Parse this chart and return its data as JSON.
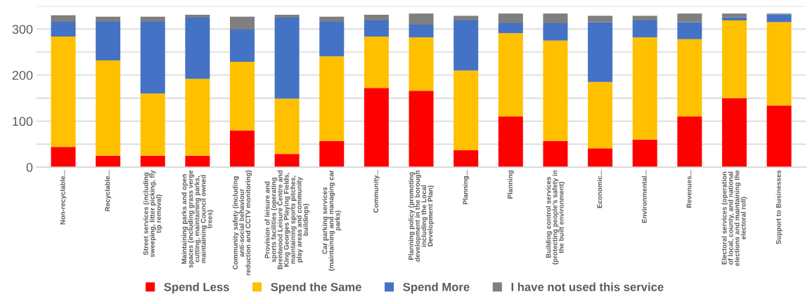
{
  "chart_data": {
    "type": "bar",
    "stacked": true,
    "categories": [
      "Non-recyclable...",
      "Recyclable...",
      "Street services (including sweeping, litter picking, fly tip removal)",
      "Maintaining parks and open spaces (including grass verge cutting, maintaining parks, maintaining Council owned trees)",
      "Community safety (including anti-social behaviour reduction and CCTV monitoring)",
      "Provision of leisure and sports facilities (operating Brentwood Leisure Centre and King Georges Playing Fields, maintaining sports pitches, play areas and community buildings)",
      "Car parking services (maintaining and managing car parks)",
      "Community...",
      "Planning policy (promoting development in the borough including the Local Development Plan)",
      "Planning...",
      "Planning",
      "Building control services (protecting people’s safety in the built environment)",
      "Economic...",
      "Environmental...",
      "Revenues...",
      "Electoral services (operation of local, county, and national elections and maintaining the electoral roll)",
      "Support to Businesses"
    ],
    "series": [
      {
        "name": "Spend Less",
        "color": "#ff0000",
        "values": [
          44,
          25,
          25,
          25,
          80,
          29,
          57,
          172,
          166,
          37,
          110,
          57,
          41,
          60,
          110,
          150,
          134
        ]
      },
      {
        "name": "Spend the Same",
        "color": "#ffc000",
        "values": [
          240,
          207,
          135,
          167,
          149,
          120,
          184,
          112,
          116,
          173,
          181,
          218,
          144,
          222,
          168,
          169,
          181
        ]
      },
      {
        "name": "Spend More",
        "color": "#4472c4",
        "values": [
          32,
          84,
          156,
          133,
          70,
          176,
          75,
          35,
          28,
          109,
          22,
          38,
          130,
          37,
          37,
          7,
          17
        ]
      },
      {
        "name": "I have not used this service",
        "color": "#7f7f7f",
        "values": [
          14,
          11,
          11,
          6,
          28,
          6,
          11,
          12,
          24,
          10,
          21,
          21,
          14,
          10,
          19,
          8,
          2
        ]
      }
    ],
    "ylim": [
      0,
      350
    ],
    "yticks": [
      0,
      {
        "value": 50,
        "label": null
      },
      100,
      {
        "value": 150,
        "label": null
      },
      200,
      {
        "value": 250,
        "label": null
      },
      300,
      {
        "value": 350,
        "label": null
      }
    ],
    "grid": "y",
    "legend": "bottom"
  }
}
